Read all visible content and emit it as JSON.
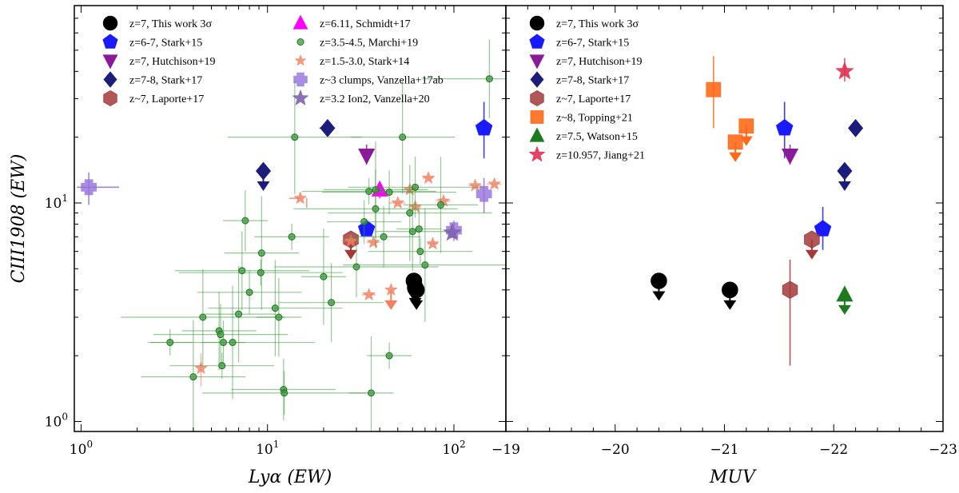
{
  "chart_data": [
    {
      "panel": "left",
      "type": "scatter",
      "xscale": "log",
      "yscale": "log",
      "xlim": [
        0.92,
        190
      ],
      "ylim": [
        0.9,
        80
      ],
      "xlabel": "Lyα (EW)",
      "ylabel": "CIII1908 (EW)",
      "xticks": [
        {
          "v": 1,
          "b": "10",
          "e": "0"
        },
        {
          "v": 10,
          "b": "10",
          "e": "1"
        },
        {
          "v": 100,
          "b": "10",
          "e": "2"
        }
      ],
      "yticks": [
        {
          "v": 1,
          "b": "10",
          "e": "0"
        },
        {
          "v": 10,
          "b": "10",
          "e": "1"
        }
      ],
      "legend": [
        {
          "label": "z=7, This work 3σ",
          "marker": "circle",
          "color": "#000000"
        },
        {
          "label": "z=6-7, Stark+15",
          "marker": "pentagon",
          "color": "#1a1aff"
        },
        {
          "label": "z=7, Hutchison+19",
          "marker": "tri-down",
          "color": "#8b1a9a"
        },
        {
          "label": "z=7-8, Stark+17",
          "marker": "diamond",
          "color": "#1c1c7a"
        },
        {
          "label": "z~7, Laporte+17",
          "marker": "hexagon",
          "color": "#a33a3a"
        },
        {
          "label": "z=6.11, Schmidt+17",
          "marker": "tri-up",
          "color": "#ff00ff"
        },
        {
          "label": "z=3.5-4.5, Marchi+19",
          "marker": "circle-small",
          "color": "#3c9a3c"
        },
        {
          "label": "z=1.5-3.0, Stark+14",
          "marker": "star-small",
          "color": "#f08060"
        },
        {
          "label": "z~3 clumps, Vanzella+17ab",
          "marker": "plus",
          "color": "#9370db"
        },
        {
          "label": "z=3.2 Ion2, Vanzella+20",
          "marker": "star",
          "color": "#8060b0"
        }
      ],
      "series": [
        {
          "name": "This work",
          "marker": "circle",
          "color": "#000000",
          "points": [
            {
              "x": 61,
              "y": 4.4,
              "ul": true
            },
            {
              "x": 63,
              "y": 4.0,
              "ul": true
            },
            {
              "x": 62,
              "y": 4.1,
              "ul": true
            }
          ]
        },
        {
          "name": "Stark+15",
          "marker": "pentagon",
          "color": "#1a1aff",
          "points": [
            {
              "x": 34,
              "y": 7.6,
              "yerr": [
                0.5,
                0.7
              ]
            },
            {
              "x": 145,
              "y": 22,
              "yerr": [
                6,
                7
              ]
            }
          ]
        },
        {
          "name": "Hutchison+19",
          "marker": "tri-down",
          "color": "#8b1a9a",
          "points": [
            {
              "x": 34,
              "y": 16.5,
              "yerr": [
                1.5,
                2
              ]
            }
          ]
        },
        {
          "name": "Stark+17",
          "marker": "diamond",
          "color": "#1c1c7a",
          "points": [
            {
              "x": 9.5,
              "y": 14,
              "ul": true,
              "xerr": [
                0.5,
                0.5
              ]
            },
            {
              "x": 21,
              "y": 22,
              "xerr": [
                2,
                2
              ]
            }
          ]
        },
        {
          "name": "Laporte+17",
          "marker": "hexagon",
          "color": "#a33a3a",
          "points": [
            {
              "x": 28,
              "y": 6.8,
              "ul": true
            }
          ]
        },
        {
          "name": "Schmidt+17",
          "marker": "tri-up",
          "color": "#ff00ff",
          "points": [
            {
              "x": 40,
              "y": 11.5,
              "yerr": [
                1,
                1
              ]
            }
          ]
        },
        {
          "name": "Vanzella+17ab",
          "marker": "plus",
          "color": "#9370db",
          "points": [
            {
              "x": 1.1,
              "y": 11.8,
              "xerr": [
                0.15,
                0.5
              ],
              "yerr": [
                2,
                2
              ]
            },
            {
              "x": 145,
              "y": 11,
              "yerr": [
                2,
                2
              ]
            },
            {
              "x": 100,
              "y": 7.5,
              "yerr": [
                0.8,
                0.8
              ]
            }
          ]
        },
        {
          "name": "Vanzella+20",
          "marker": "star",
          "color": "#8060b0",
          "points": [
            {
              "x": 98,
              "y": 7.3
            }
          ]
        },
        {
          "name": "Stark+14",
          "marker": "star-small",
          "color": "#f08060",
          "points": [
            {
              "x": 4.4,
              "y": 1.75,
              "yerr": [
                0.3,
                0.3
              ]
            },
            {
              "x": 15,
              "y": 10.5,
              "xlim_left": true
            },
            {
              "x": 28,
              "y": 6.7,
              "xerr": [
                3,
                3
              ]
            },
            {
              "x": 35,
              "y": 3.8,
              "xerr": [
                3,
                3
              ]
            },
            {
              "x": 37,
              "y": 6.6,
              "xerr": [
                3,
                3
              ]
            },
            {
              "x": 46,
              "y": 4.0,
              "ul": true
            },
            {
              "x": 50,
              "y": 10,
              "xerr": [
                5,
                5
              ]
            },
            {
              "x": 58,
              "y": 11.5,
              "xerr": [
                5,
                5
              ]
            },
            {
              "x": 62,
              "y": 9.6,
              "xerr": [
                5,
                5
              ]
            },
            {
              "x": 73,
              "y": 13,
              "xerr": [
                5,
                5
              ]
            },
            {
              "x": 77,
              "y": 6.5,
              "xerr": [
                5,
                5
              ]
            },
            {
              "x": 88,
              "y": 10.2,
              "xerr": [
                8,
                8
              ]
            },
            {
              "x": 130,
              "y": 12,
              "xerr": [
                10,
                10
              ]
            },
            {
              "x": 165,
              "y": 12.2,
              "xerr": [
                15,
                15
              ]
            }
          ]
        },
        {
          "name": "Marchi+19",
          "marker": "circle-small",
          "color": "#3c9a3c",
          "points": [
            {
              "x": 3,
              "y": 2.3
            },
            {
              "x": 4,
              "y": 1.6
            },
            {
              "x": 4.5,
              "y": 3.0
            },
            {
              "x": 5.5,
              "y": 2.6
            },
            {
              "x": 5.6,
              "y": 2.5
            },
            {
              "x": 5.8,
              "y": 2.3
            },
            {
              "x": 5.7,
              "y": 1.8
            },
            {
              "x": 6.5,
              "y": 2.3
            },
            {
              "x": 7,
              "y": 3.1
            },
            {
              "x": 7.3,
              "y": 4.9
            },
            {
              "x": 7.6,
              "y": 8.3
            },
            {
              "x": 8,
              "y": 3.9
            },
            {
              "x": 9.2,
              "y": 4.8
            },
            {
              "x": 9.3,
              "y": 5.9
            },
            {
              "x": 11,
              "y": 3.3
            },
            {
              "x": 11.5,
              "y": 3.0
            },
            {
              "x": 12.2,
              "y": 1.4
            },
            {
              "x": 12.3,
              "y": 1.35
            },
            {
              "x": 13.5,
              "y": 7.0
            },
            {
              "x": 14,
              "y": 20
            },
            {
              "x": 20,
              "y": 4.6
            },
            {
              "x": 22,
              "y": 3.5
            },
            {
              "x": 30,
              "y": 5.1
            },
            {
              "x": 33,
              "y": 8.2
            },
            {
              "x": 35,
              "y": 11.3
            },
            {
              "x": 36,
              "y": 1.35
            },
            {
              "x": 38,
              "y": 11.5
            },
            {
              "x": 38,
              "y": 9.4
            },
            {
              "x": 42,
              "y": 7.0
            },
            {
              "x": 45,
              "y": 11.2
            },
            {
              "x": 45,
              "y": 2.0
            },
            {
              "x": 53,
              "y": 20
            },
            {
              "x": 58,
              "y": 9.0
            },
            {
              "x": 60,
              "y": 7.4
            },
            {
              "x": 62,
              "y": 11.8
            },
            {
              "x": 65,
              "y": 7.6
            },
            {
              "x": 66,
              "y": 6.0
            },
            {
              "x": 70,
              "y": 5.2
            },
            {
              "x": 85,
              "y": 9.8
            },
            {
              "x": 155,
              "y": 37
            }
          ]
        }
      ]
    },
    {
      "panel": "right",
      "type": "scatter",
      "xscale": "linear",
      "yscale": "log",
      "xlim": [
        -19,
        -23
      ],
      "ylim": [
        0.9,
        80
      ],
      "xlabel": "MUV",
      "ylabel": "",
      "xticks": [
        -19,
        -20,
        -21,
        -22,
        -23
      ],
      "legend": [
        {
          "label": "z=7, This work 3σ",
          "marker": "circle",
          "color": "#000000"
        },
        {
          "label": "z=6-7, Stark+15",
          "marker": "pentagon",
          "color": "#1a1aff"
        },
        {
          "label": "z=7, Hutchison+19",
          "marker": "tri-down",
          "color": "#8b1a9a"
        },
        {
          "label": "z=7-8, Stark+17",
          "marker": "diamond",
          "color": "#1c1c7a"
        },
        {
          "label": "z~7, Laporte+17",
          "marker": "hexagon",
          "color": "#a33a3a"
        },
        {
          "label": "z~8, Topping+21",
          "marker": "square",
          "color": "#ff6a1a"
        },
        {
          "label": "z=7.5, Watson+15",
          "marker": "tri-up",
          "color": "#1f7a1f"
        },
        {
          "label": "z=10.957, Jiang+21",
          "marker": "star",
          "color": "#e03050"
        }
      ],
      "series": [
        {
          "name": "This work",
          "marker": "circle",
          "color": "#000000",
          "points": [
            {
              "x": -20.4,
              "y": 4.4,
              "ul": true
            },
            {
              "x": -21.05,
              "y": 4.0,
              "ul": true
            }
          ]
        },
        {
          "name": "Stark+15",
          "marker": "pentagon",
          "color": "#1a1aff",
          "points": [
            {
              "x": -21.55,
              "y": 22,
              "yerr": [
                6,
                7
              ]
            },
            {
              "x": -21.9,
              "y": 7.6,
              "yerr": [
                1.5,
                2
              ]
            }
          ]
        },
        {
          "name": "Hutchison+19",
          "marker": "tri-down",
          "color": "#8b1a9a",
          "points": [
            {
              "x": -21.6,
              "y": 16.5,
              "yerr": [
                1.5,
                2
              ]
            }
          ]
        },
        {
          "name": "Stark+17",
          "marker": "diamond",
          "color": "#1c1c7a",
          "points": [
            {
              "x": -22.1,
              "y": 14,
              "ul": true
            },
            {
              "x": -22.2,
              "y": 22
            }
          ]
        },
        {
          "name": "Laporte+17",
          "marker": "hexagon",
          "color": "#a33a3a",
          "points": [
            {
              "x": -21.8,
              "y": 6.8,
              "ul": true
            },
            {
              "x": -21.6,
              "y": 4.0,
              "yerr": [
                2.2,
                1.5
              ]
            }
          ]
        },
        {
          "name": "Topping+21",
          "marker": "square",
          "color": "#ff6a1a",
          "points": [
            {
              "x": -20.9,
              "y": 33,
              "yerr": [
                11,
                14
              ]
            },
            {
              "x": -21.1,
              "y": 19,
              "ul": true
            },
            {
              "x": -21.2,
              "y": 22.5,
              "ul": true
            }
          ]
        },
        {
          "name": "Watson+15",
          "marker": "tri-up",
          "color": "#1f7a1f",
          "points": [
            {
              "x": -22.1,
              "y": 3.8,
              "ul": true
            }
          ]
        },
        {
          "name": "Jiang+21",
          "marker": "star",
          "color": "#e03050",
          "points": [
            {
              "x": -22.1,
              "y": 40,
              "yerr": [
                4,
                6
              ]
            }
          ]
        }
      ]
    }
  ]
}
